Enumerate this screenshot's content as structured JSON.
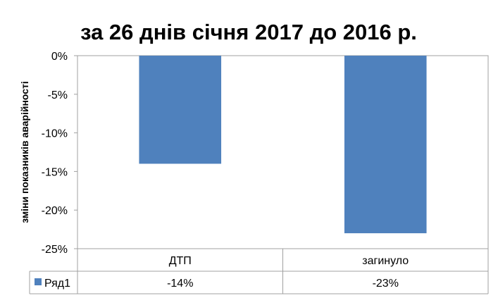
{
  "chart_data": {
    "type": "bar",
    "title": "за 26 днів січня 2017 до 2016 р.",
    "ylabel": "зміни показників аварійності",
    "xlabel": "",
    "categories": [
      "ДТП",
      "загинуло"
    ],
    "series": [
      {
        "name": "Ряд1",
        "values": [
          -0.14,
          -0.23
        ],
        "labels": [
          "-14%",
          "-23%"
        ],
        "color": "#4f81bd"
      }
    ],
    "ylim": [
      -0.25,
      0
    ],
    "yticks": [
      0,
      -0.05,
      -0.1,
      -0.15,
      -0.2,
      -0.25
    ],
    "ytick_labels": [
      "0%",
      "-5%",
      "-10%",
      "-15%",
      "-20%",
      "-25%"
    ],
    "grid": false,
    "legend": "data-table"
  }
}
